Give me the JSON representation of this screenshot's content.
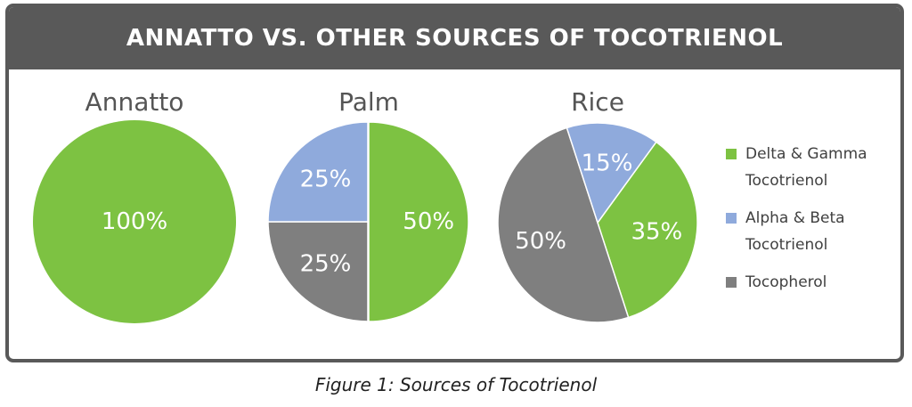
{
  "header": {
    "title": "ANNATTO VS. OTHER SOURCES OF TOCOTRIENOL"
  },
  "caption": "Figure 1: Sources of Tocotrienol",
  "colors": {
    "delta_gamma": "#7dc242",
    "alpha_beta": "#8faadc",
    "tocopherol": "#7f7f7f",
    "header_bg": "#595959"
  },
  "chart_data": [
    {
      "type": "pie",
      "title": "Annatto",
      "series": [
        {
          "name": "Delta & Gamma Tocotrienol",
          "value": 100,
          "label": "100%"
        }
      ]
    },
    {
      "type": "pie",
      "title": "Palm",
      "series": [
        {
          "name": "Delta & Gamma Tocotrienol",
          "value": 50,
          "label": "50%"
        },
        {
          "name": "Tocopherol",
          "value": 25,
          "label": "25%"
        },
        {
          "name": "Alpha & Beta Tocotrienol",
          "value": 25,
          "label": "25%"
        }
      ]
    },
    {
      "type": "pie",
      "title": "Rice",
      "series": [
        {
          "name": "Delta & Gamma Tocotrienol",
          "value": 35,
          "label": "35%"
        },
        {
          "name": "Tocopherol",
          "value": 50,
          "label": "50%"
        },
        {
          "name": "Alpha & Beta Tocotrienol",
          "value": 15,
          "label": "15%"
        }
      ]
    }
  ],
  "legend": {
    "placement": "right",
    "items": [
      {
        "label_line1": "Delta & Gamma",
        "label_line2": "Tocotrienol",
        "color": "#7dc242"
      },
      {
        "label_line1": "Alpha & Beta",
        "label_line2": "Tocotrienol",
        "color": "#8faadc"
      },
      {
        "label_line1": "Tocopherol",
        "label_line2": "",
        "color": "#7f7f7f"
      }
    ]
  }
}
